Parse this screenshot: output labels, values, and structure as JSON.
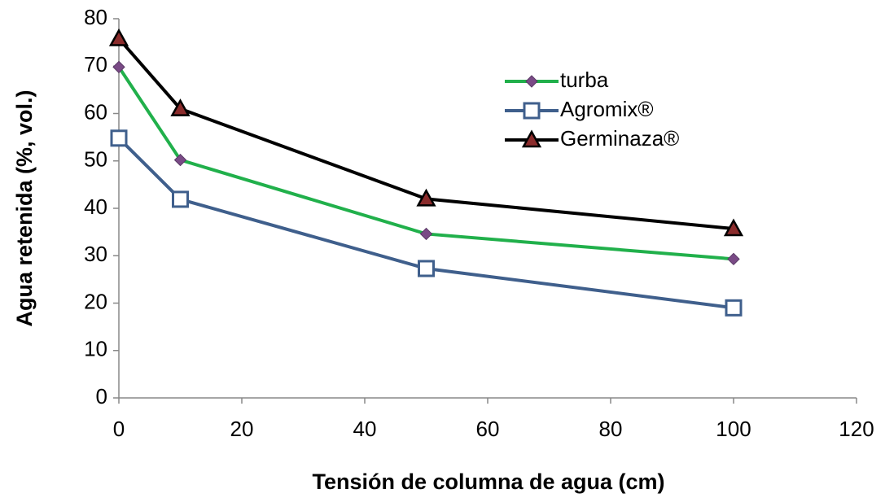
{
  "chart_data": {
    "type": "line",
    "x_label": "Tensión de columna de agua (cm)",
    "y_label": "Agua retenida (%, vol.)",
    "x": [
      0,
      10,
      50,
      100
    ],
    "series": [
      {
        "name": "turba",
        "color": "#21b04b",
        "marker": "diamond",
        "marker_fill": "#7a4a86",
        "values": [
          69.8,
          50.2,
          34.6,
          29.3
        ]
      },
      {
        "name": "Agromix®",
        "color": "#3f5f8c",
        "marker": "square",
        "marker_fill": "#ffffff",
        "values": [
          54.8,
          41.9,
          27.3,
          19.0
        ]
      },
      {
        "name": "Germinaza®",
        "color": "#000000",
        "marker": "triangle",
        "marker_fill": "#8b2c2c",
        "values": [
          75.8,
          61.0,
          42.0,
          35.7
        ]
      }
    ],
    "xlim": [
      0,
      120
    ],
    "xticks": [
      0,
      20,
      40,
      60,
      80,
      100,
      120
    ],
    "ylim": [
      0,
      80
    ],
    "yticks": [
      0,
      10,
      20,
      30,
      40,
      50,
      60,
      70,
      80
    ],
    "grid": false,
    "legend": "upper right"
  }
}
